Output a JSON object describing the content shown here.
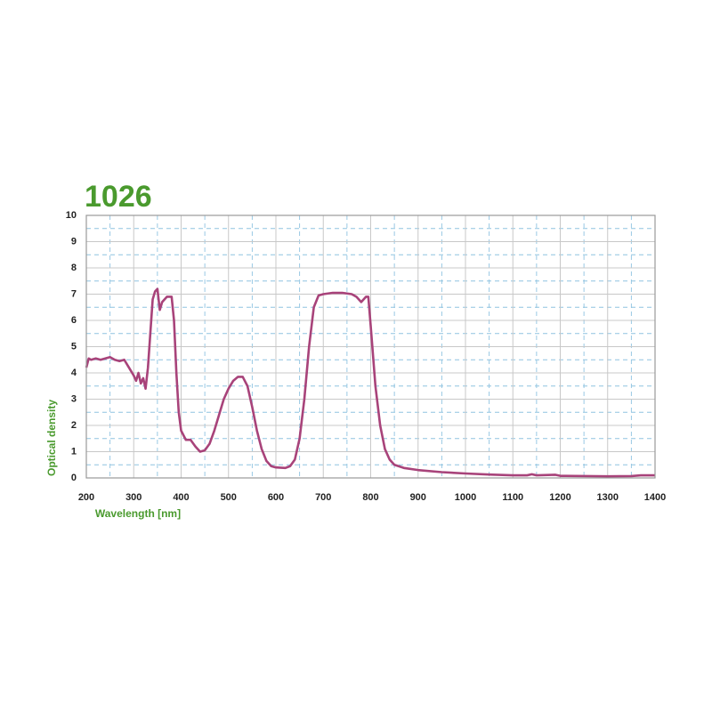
{
  "chart_data": {
    "type": "line",
    "title": "1026",
    "xlabel": "Wavelength [nm]",
    "ylabel": "Optical density",
    "x": [
      200,
      205,
      210,
      220,
      230,
      240,
      250,
      260,
      270,
      280,
      290,
      300,
      305,
      310,
      315,
      320,
      325,
      330,
      335,
      340,
      345,
      350,
      355,
      360,
      370,
      380,
      385,
      390,
      395,
      400,
      410,
      420,
      430,
      440,
      450,
      460,
      470,
      480,
      490,
      500,
      510,
      520,
      530,
      540,
      550,
      560,
      570,
      580,
      590,
      600,
      620,
      630,
      640,
      650,
      660,
      670,
      680,
      690,
      700,
      720,
      740,
      760,
      770,
      780,
      790,
      795,
      800,
      810,
      820,
      830,
      840,
      850,
      870,
      900,
      950,
      1000,
      1050,
      1100,
      1130,
      1140,
      1150,
      1190,
      1200,
      1300,
      1350,
      1370,
      1400
    ],
    "series": [
      {
        "name": "1026",
        "color": "#a8437a",
        "values": [
          4.2,
          4.55,
          4.5,
          4.55,
          4.5,
          4.55,
          4.6,
          4.5,
          4.45,
          4.5,
          4.2,
          3.9,
          3.7,
          4.0,
          3.6,
          3.8,
          3.4,
          4.2,
          5.5,
          6.8,
          7.1,
          7.2,
          6.4,
          6.7,
          6.9,
          6.9,
          6.0,
          4.0,
          2.5,
          1.8,
          1.45,
          1.45,
          1.2,
          1.0,
          1.05,
          1.3,
          1.8,
          2.4,
          3.0,
          3.4,
          3.7,
          3.85,
          3.85,
          3.5,
          2.7,
          1.8,
          1.1,
          0.65,
          0.45,
          0.4,
          0.38,
          0.45,
          0.7,
          1.5,
          3.0,
          5.0,
          6.5,
          6.95,
          7.0,
          7.05,
          7.05,
          7.0,
          6.9,
          6.7,
          6.9,
          6.9,
          5.8,
          3.5,
          2.0,
          1.1,
          0.7,
          0.5,
          0.38,
          0.3,
          0.22,
          0.17,
          0.13,
          0.1,
          0.1,
          0.14,
          0.1,
          0.12,
          0.08,
          0.06,
          0.07,
          0.1,
          0.1
        ]
      }
    ],
    "xlim": [
      200,
      1400
    ],
    "xticks": [
      200,
      300,
      400,
      500,
      600,
      700,
      800,
      900,
      1000,
      1100,
      1200,
      1300,
      1400
    ],
    "ylim": [
      0,
      10
    ],
    "yticks": [
      0,
      1,
      2,
      3,
      4,
      5,
      6,
      7,
      8,
      9,
      10
    ],
    "grid": true
  }
}
